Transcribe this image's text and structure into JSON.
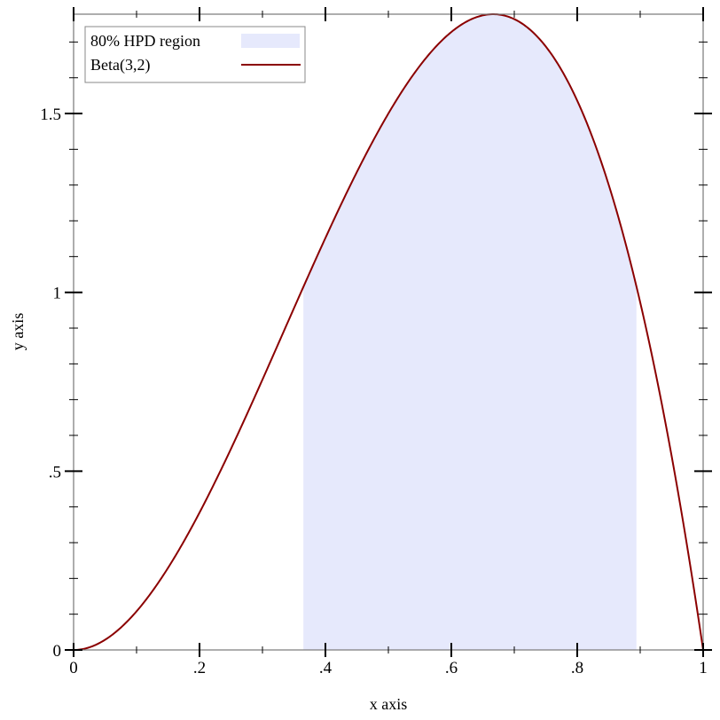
{
  "chart_data": {
    "type": "area",
    "title": "",
    "xlabel": "x axis",
    "ylabel": "y axis",
    "xlim": [
      0,
      1
    ],
    "ylim": [
      0,
      1.7778
    ],
    "x_ticks": [
      {
        "value": 0,
        "label": "0"
      },
      {
        "value": 0.2,
        "label": ".2"
      },
      {
        "value": 0.4,
        "label": ".4"
      },
      {
        "value": 0.6,
        "label": ".6"
      },
      {
        "value": 0.8,
        "label": ".8"
      },
      {
        "value": 1,
        "label": "1"
      }
    ],
    "y_ticks": [
      {
        "value": 0,
        "label": "0"
      },
      {
        "value": 0.5,
        "label": ".5"
      },
      {
        "value": 1,
        "label": "1"
      },
      {
        "value": 1.5,
        "label": "1.5"
      }
    ],
    "grid": false,
    "legend_position": "top-left",
    "series": [
      {
        "name": "80% HPD region",
        "kind": "interval-fill",
        "x_range": [
          0.365,
          0.894
        ],
        "color": "#e6e9fc"
      },
      {
        "name": "Beta(3,2)",
        "kind": "line",
        "function": "12*x^2*(1-x)",
        "color": "#8b0000"
      }
    ]
  }
}
